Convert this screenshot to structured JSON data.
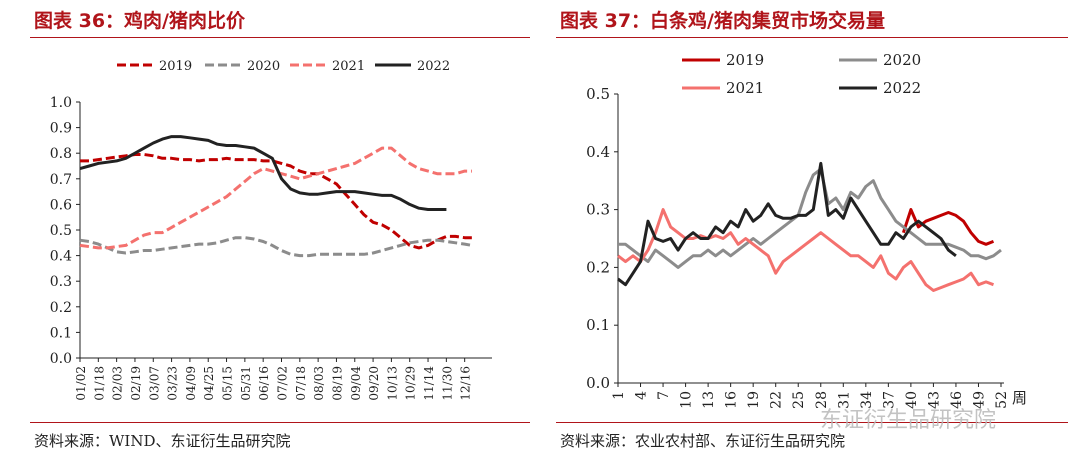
{
  "chart_data": [
    {
      "type": "line",
      "title": "图表 36：鸡肉/猪肉比价",
      "source": "资料来源：WIND、东证衍生品研究院",
      "xlabel": "",
      "ylabel": "",
      "ylim": [
        0.0,
        1.0
      ],
      "yticks": [
        "0.0",
        "0.1",
        "0.2",
        "0.3",
        "0.4",
        "0.5",
        "0.6",
        "0.7",
        "0.8",
        "0.9",
        "1.0"
      ],
      "x_tick_labels": [
        "01/02",
        "01/18",
        "02/03",
        "02/19",
        "03/07",
        "03/23",
        "04/09",
        "04/25",
        "05/15",
        "05/31",
        "06/16",
        "07/02",
        "07/18",
        "08/03",
        "08/19",
        "09/04",
        "09/20",
        "10/13",
        "10/29",
        "11/14",
        "11/30",
        "12/16"
      ],
      "x_range": [
        0,
        21.4
      ],
      "legend": "top",
      "series": [
        {
          "name": "2019",
          "color": "#c00000",
          "dash": "dashed",
          "x": [
            0,
            0.5,
            1,
            1.5,
            2,
            2.5,
            3,
            3.5,
            4,
            4.5,
            5,
            5.5,
            6,
            6.5,
            7,
            7.5,
            8,
            8.5,
            9,
            9.5,
            10,
            10.5,
            11,
            11.5,
            12,
            12.5,
            13,
            13.5,
            14,
            14.5,
            15,
            15.5,
            16,
            16.5,
            17,
            17.5,
            18,
            18.5,
            19,
            19.5,
            20,
            20.5,
            21,
            21.4
          ],
          "y": [
            0.77,
            0.77,
            0.775,
            0.78,
            0.785,
            0.79,
            0.795,
            0.795,
            0.79,
            0.78,
            0.78,
            0.775,
            0.775,
            0.77,
            0.775,
            0.775,
            0.78,
            0.775,
            0.775,
            0.775,
            0.77,
            0.77,
            0.76,
            0.75,
            0.73,
            0.72,
            0.72,
            0.7,
            0.68,
            0.64,
            0.6,
            0.56,
            0.53,
            0.52,
            0.5,
            0.47,
            0.44,
            0.43,
            0.44,
            0.46,
            0.475,
            0.475,
            0.47,
            0.47
          ]
        },
        {
          "name": "2020",
          "color": "#8c8c8c",
          "dash": "dashed",
          "x": [
            0,
            0.5,
            1,
            1.5,
            2,
            2.5,
            3,
            3.5,
            4,
            4.5,
            5,
            5.5,
            6,
            6.5,
            7,
            7.5,
            8,
            8.5,
            9,
            9.5,
            10,
            10.5,
            11,
            11.5,
            12,
            12.5,
            13,
            13.5,
            14,
            14.5,
            15,
            15.5,
            16,
            16.5,
            17,
            17.5,
            18,
            18.5,
            19,
            19.5,
            20,
            20.5,
            21,
            21.4
          ],
          "y": [
            0.46,
            0.455,
            0.445,
            0.43,
            0.415,
            0.41,
            0.415,
            0.42,
            0.42,
            0.425,
            0.43,
            0.435,
            0.44,
            0.445,
            0.445,
            0.45,
            0.46,
            0.47,
            0.47,
            0.465,
            0.455,
            0.44,
            0.42,
            0.405,
            0.4,
            0.4,
            0.405,
            0.405,
            0.405,
            0.405,
            0.405,
            0.405,
            0.41,
            0.42,
            0.43,
            0.44,
            0.45,
            0.455,
            0.46,
            0.46,
            0.455,
            0.45,
            0.445,
            0.44
          ]
        },
        {
          "name": "2021",
          "color": "#f4716e",
          "dash": "dashed",
          "x": [
            0,
            0.5,
            1,
            1.5,
            2,
            2.5,
            3,
            3.5,
            4,
            4.5,
            5,
            5.5,
            6,
            6.5,
            7,
            7.5,
            8,
            8.5,
            9,
            9.5,
            10,
            10.5,
            11,
            11.5,
            12,
            12.5,
            13,
            13.5,
            14,
            14.5,
            15,
            15.5,
            16,
            16.5,
            17,
            17.5,
            18,
            18.5,
            19,
            19.5,
            20,
            20.5,
            21,
            21.4
          ],
          "y": [
            0.44,
            0.435,
            0.43,
            0.43,
            0.435,
            0.44,
            0.46,
            0.48,
            0.49,
            0.49,
            0.51,
            0.53,
            0.55,
            0.57,
            0.59,
            0.61,
            0.63,
            0.66,
            0.69,
            0.72,
            0.74,
            0.73,
            0.72,
            0.71,
            0.7,
            0.71,
            0.72,
            0.73,
            0.74,
            0.75,
            0.76,
            0.78,
            0.8,
            0.82,
            0.82,
            0.79,
            0.76,
            0.74,
            0.73,
            0.72,
            0.72,
            0.72,
            0.73,
            0.73
          ]
        },
        {
          "name": "2022",
          "color": "#222222",
          "dash": "solid",
          "x": [
            0,
            0.5,
            1,
            1.5,
            2,
            2.5,
            3,
            3.5,
            4,
            4.5,
            5,
            5.5,
            6,
            6.5,
            7,
            7.5,
            8,
            8.5,
            9,
            9.5,
            10,
            10.5,
            11,
            11.5,
            12,
            12.5,
            13,
            13.5,
            14,
            14.5,
            15,
            15.5,
            16,
            16.5,
            17,
            17.5,
            18,
            18.5,
            19,
            19.5,
            20
          ],
          "y": [
            0.74,
            0.75,
            0.76,
            0.765,
            0.77,
            0.78,
            0.8,
            0.82,
            0.84,
            0.855,
            0.865,
            0.865,
            0.86,
            0.855,
            0.85,
            0.835,
            0.83,
            0.83,
            0.825,
            0.82,
            0.8,
            0.78,
            0.7,
            0.66,
            0.645,
            0.64,
            0.64,
            0.645,
            0.65,
            0.65,
            0.65,
            0.645,
            0.64,
            0.635,
            0.635,
            0.62,
            0.6,
            0.585,
            0.58,
            0.58,
            0.58
          ]
        }
      ]
    },
    {
      "type": "line",
      "title": "图表 37：白条鸡/猪肉集贸市场交易量",
      "source": "资料来源：农业农村部、东证衍生品研究院",
      "xlabel": "周",
      "ylabel": "",
      "ylim": [
        0.0,
        0.5
      ],
      "yticks": [
        "0.0",
        "0.1",
        "0.2",
        "0.3",
        "0.4",
        "0.5"
      ],
      "x_tick_labels": [
        "1",
        "4",
        "7",
        "10",
        "13",
        "16",
        "19",
        "22",
        "25",
        "28",
        "31",
        "34",
        "37",
        "40",
        "43",
        "46",
        "49",
        "52"
      ],
      "x_tick_values": [
        1,
        4,
        7,
        10,
        13,
        16,
        19,
        22,
        25,
        28,
        31,
        34,
        37,
        40,
        43,
        46,
        49,
        52
      ],
      "x_range": [
        1,
        52
      ],
      "legend": "top",
      "series": [
        {
          "name": "2019",
          "color": "#c00000",
          "dash": "solid",
          "x": [
            39,
            40,
            41,
            42,
            43,
            44,
            45,
            46,
            47,
            48,
            49,
            50,
            51
          ],
          "y": [
            0.26,
            0.3,
            0.27,
            0.28,
            0.285,
            0.29,
            0.295,
            0.29,
            0.28,
            0.26,
            0.245,
            0.24,
            0.245
          ]
        },
        {
          "name": "2020",
          "color": "#8c8c8c",
          "dash": "solid",
          "x": [
            1,
            2,
            3,
            4,
            5,
            6,
            7,
            8,
            9,
            10,
            11,
            12,
            13,
            14,
            15,
            16,
            17,
            18,
            19,
            20,
            21,
            22,
            23,
            24,
            25,
            26,
            27,
            28,
            29,
            30,
            31,
            32,
            33,
            34,
            35,
            36,
            37,
            38,
            39,
            40,
            41,
            42,
            43,
            44,
            45,
            46,
            47,
            48,
            49,
            50,
            51,
            52
          ],
          "y": [
            0.24,
            0.24,
            0.23,
            0.22,
            0.21,
            0.23,
            0.22,
            0.21,
            0.2,
            0.21,
            0.22,
            0.22,
            0.23,
            0.22,
            0.23,
            0.22,
            0.23,
            0.24,
            0.25,
            0.24,
            0.25,
            0.26,
            0.27,
            0.28,
            0.29,
            0.33,
            0.36,
            0.37,
            0.31,
            0.32,
            0.3,
            0.33,
            0.32,
            0.34,
            0.35,
            0.32,
            0.3,
            0.28,
            0.27,
            0.26,
            0.25,
            0.24,
            0.24,
            0.24,
            0.24,
            0.235,
            0.23,
            0.22,
            0.22,
            0.215,
            0.22,
            0.23
          ]
        },
        {
          "name": "2021",
          "color": "#f4716e",
          "dash": "solid",
          "x": [
            1,
            2,
            3,
            4,
            5,
            6,
            7,
            8,
            9,
            10,
            11,
            12,
            13,
            14,
            15,
            16,
            17,
            18,
            19,
            20,
            21,
            22,
            23,
            24,
            25,
            26,
            27,
            28,
            29,
            30,
            31,
            32,
            33,
            34,
            35,
            36,
            37,
            38,
            39,
            40,
            41,
            42,
            43,
            44,
            45,
            46,
            47,
            48,
            49,
            50,
            51
          ],
          "y": [
            0.22,
            0.21,
            0.22,
            0.21,
            0.23,
            0.26,
            0.3,
            0.27,
            0.26,
            0.25,
            0.25,
            0.255,
            0.25,
            0.255,
            0.25,
            0.26,
            0.24,
            0.25,
            0.24,
            0.23,
            0.22,
            0.19,
            0.21,
            0.22,
            0.23,
            0.24,
            0.25,
            0.26,
            0.25,
            0.24,
            0.23,
            0.22,
            0.22,
            0.21,
            0.2,
            0.22,
            0.19,
            0.18,
            0.2,
            0.21,
            0.19,
            0.17,
            0.16,
            0.165,
            0.17,
            0.175,
            0.18,
            0.19,
            0.17,
            0.175,
            0.17
          ]
        },
        {
          "name": "2022",
          "color": "#222222",
          "dash": "solid",
          "x": [
            1,
            2,
            3,
            4,
            5,
            6,
            7,
            8,
            9,
            10,
            11,
            12,
            13,
            14,
            15,
            16,
            17,
            18,
            19,
            20,
            21,
            22,
            23,
            24,
            25,
            26,
            27,
            28,
            29,
            30,
            31,
            32,
            33,
            34,
            35,
            36,
            37,
            38,
            39,
            40,
            41,
            42,
            43,
            44,
            45,
            46
          ],
          "y": [
            0.18,
            0.17,
            0.19,
            0.21,
            0.28,
            0.25,
            0.245,
            0.25,
            0.23,
            0.25,
            0.26,
            0.25,
            0.25,
            0.27,
            0.26,
            0.28,
            0.27,
            0.3,
            0.28,
            0.29,
            0.31,
            0.29,
            0.285,
            0.285,
            0.29,
            0.29,
            0.3,
            0.38,
            0.29,
            0.3,
            0.285,
            0.32,
            0.3,
            0.28,
            0.26,
            0.24,
            0.24,
            0.26,
            0.25,
            0.27,
            0.28,
            0.27,
            0.26,
            0.25,
            0.23,
            0.22
          ]
        }
      ]
    }
  ],
  "watermark": "东证衍生品研究院"
}
